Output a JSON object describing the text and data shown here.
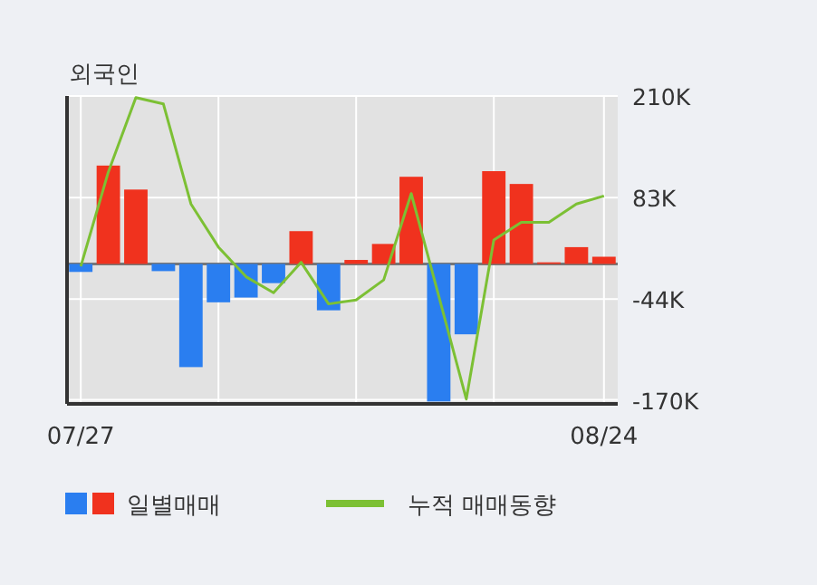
{
  "chart_data": {
    "type": "bar",
    "title": "외국인",
    "categories": [
      "07/27",
      null,
      null,
      null,
      null,
      null,
      null,
      null,
      null,
      null,
      null,
      null,
      null,
      null,
      null,
      null,
      null,
      null,
      null,
      "08/24"
    ],
    "series": [
      {
        "name": "일별매매",
        "colors": [
          "#2a7ef0",
          "#f0321e",
          "#f0321e",
          "#2a7ef0",
          "#2a7ef0",
          "#2a7ef0",
          "#2a7ef0",
          "#2a7ef0",
          "#f0321e",
          "#2a7ef0",
          "#f0321e",
          "#f0321e",
          "#f0321e",
          "#2a7ef0",
          "#2a7ef0",
          "#f0321e",
          "#f0321e",
          "#f0321e",
          "#f0321e",
          "#f0321e"
        ],
        "values": [
          -10000,
          123000,
          93000,
          -9000,
          -129000,
          -48000,
          -42000,
          -24000,
          41000,
          -58000,
          5000,
          25000,
          109000,
          -172000,
          -88000,
          116000,
          100000,
          2000,
          21000,
          9000
        ]
      },
      {
        "name": "누적 매매동향",
        "type": "line",
        "color": "#7cc034",
        "values": [
          -3000,
          115000,
          208000,
          200000,
          75000,
          21000,
          -16000,
          -36000,
          2000,
          -50000,
          -45000,
          -20000,
          88000,
          -40000,
          -169000,
          30000,
          52000,
          52000,
          75000,
          85000
        ]
      }
    ],
    "ylim": [
      -175000,
      210000
    ],
    "yticks": [
      {
        "value": 210000,
        "label": "210K"
      },
      {
        "value": 83000,
        "label": "83K"
      },
      {
        "value": -44000,
        "label": "-44K"
      },
      {
        "value": -170000,
        "label": "-170K"
      }
    ],
    "grid": true,
    "legend": "bottom"
  }
}
